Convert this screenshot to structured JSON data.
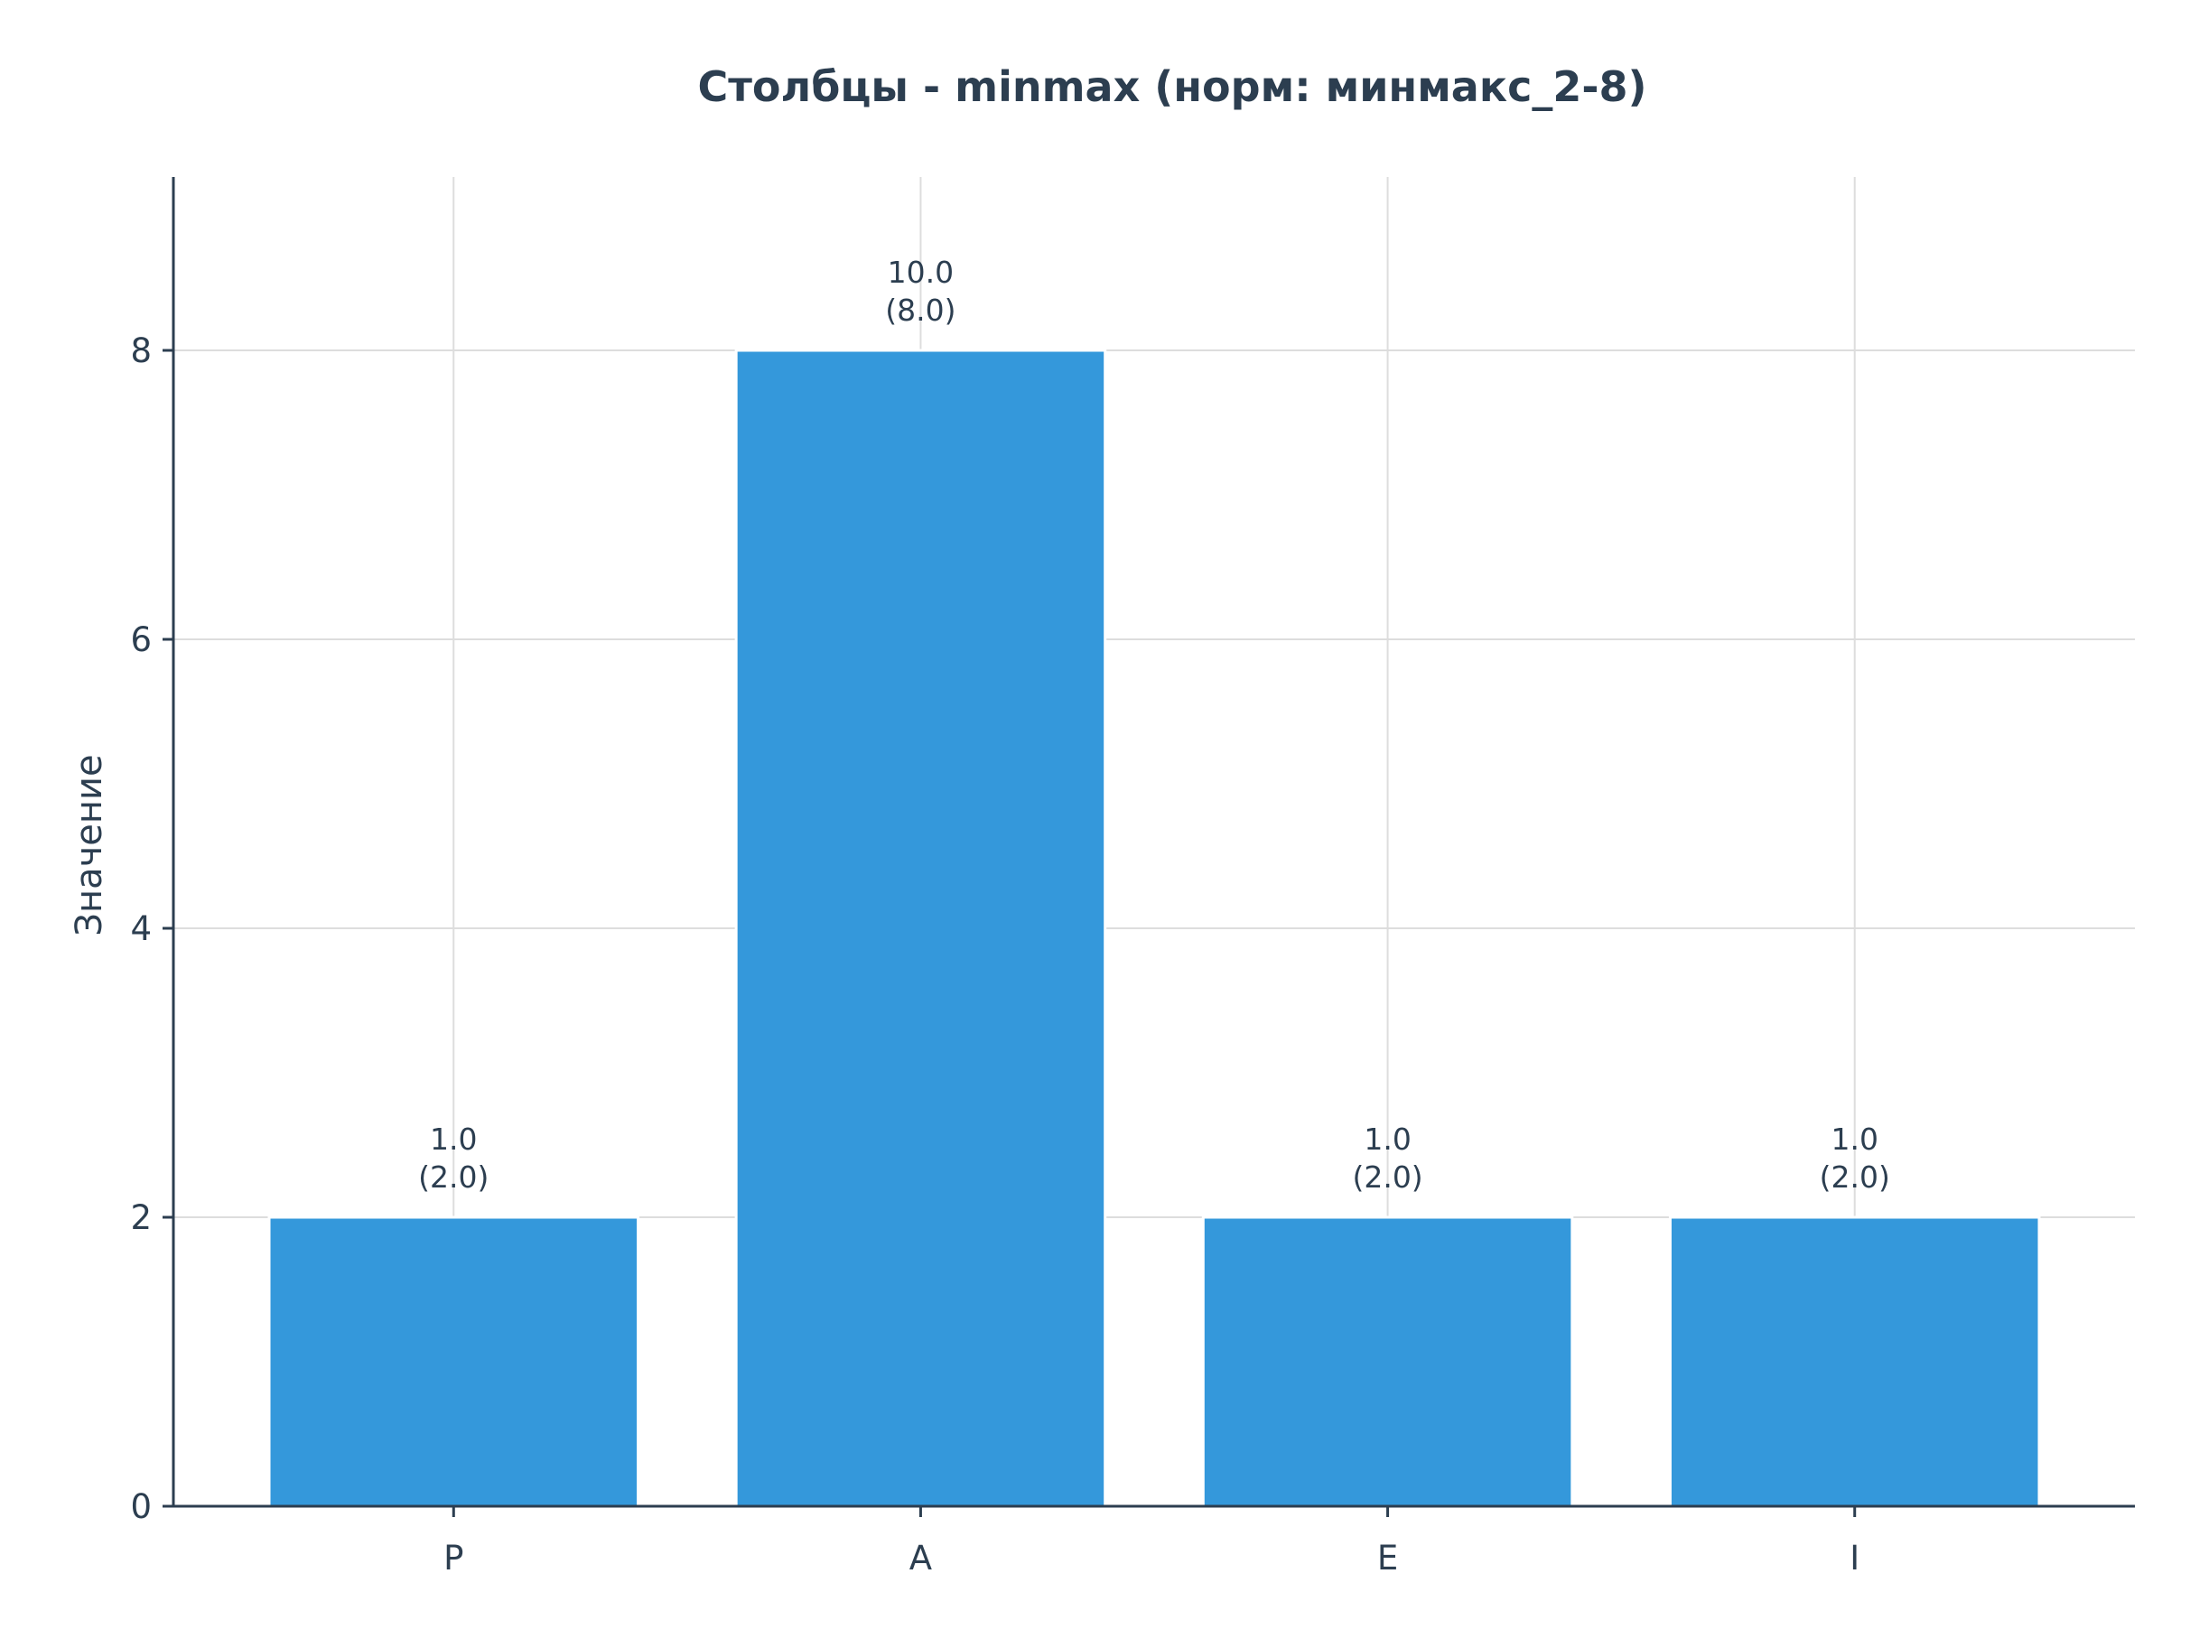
{
  "chart_data": {
    "type": "bar",
    "title": "Столбцы - minmax (норм: минмакс_2-8)",
    "xlabel": "",
    "ylabel": "Значение",
    "categories": [
      "P",
      "A",
      "E",
      "I"
    ],
    "values": [
      2.0,
      8.0,
      2.0,
      2.0
    ],
    "original_values": [
      1.0,
      10.0,
      1.0,
      1.0
    ],
    "data_labels": [
      [
        "1.0",
        "(2.0)"
      ],
      [
        "10.0",
        "(8.0)"
      ],
      [
        "1.0",
        "(2.0)"
      ],
      [
        "1.0",
        "(2.0)"
      ]
    ],
    "ylim": [
      0,
      9.2
    ],
    "yticks": [
      0,
      2,
      4,
      6,
      8
    ],
    "ytick_labels": [
      "0",
      "2",
      "4",
      "6",
      "8"
    ],
    "grid": true,
    "colors": {
      "bar": "#3498db",
      "text": "#2c3e50",
      "axis": "#2c3e50",
      "grid": "#dddddd"
    }
  }
}
